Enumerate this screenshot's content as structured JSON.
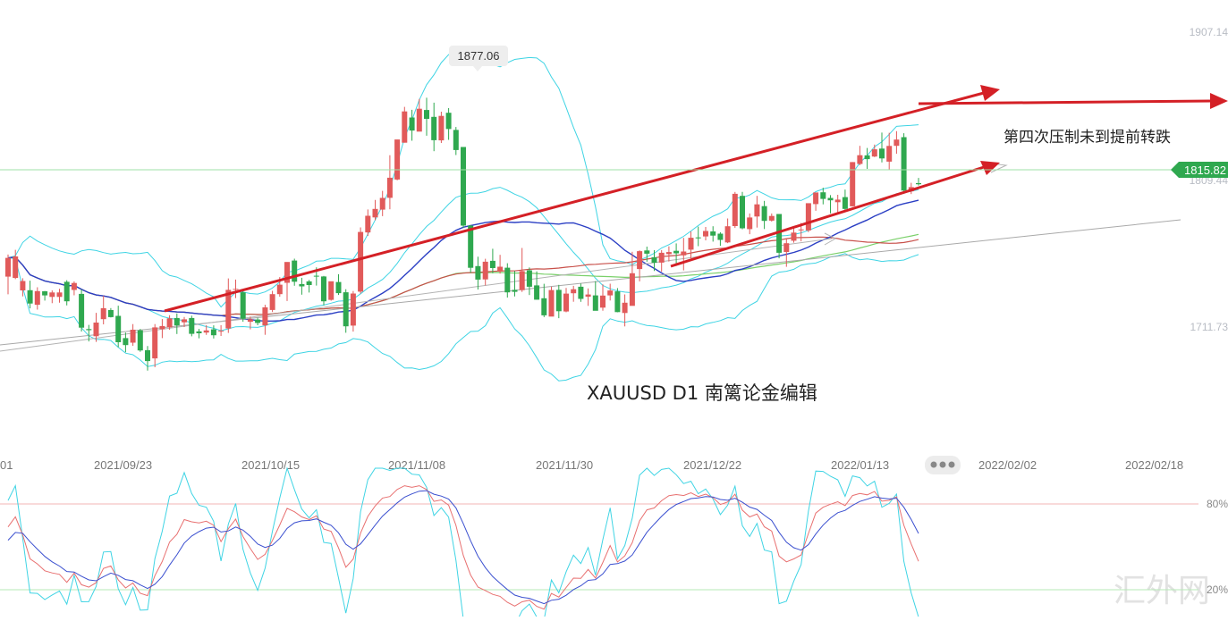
{
  "chart_data": {
    "type": "candlestick",
    "symbol_title": "XAUUSD   D1   南篱论金编辑",
    "annotation": "第四次压制未到提前转跌",
    "watermark": "汇外网",
    "price_axis": {
      "ticks": [
        1907.14,
        1711.73
      ],
      "current_price": "1815.82",
      "hidden_label": "1809.44"
    },
    "high_marker": {
      "value": "1877.06"
    },
    "date_axis": {
      "ticks": [
        "01",
        "2021/09/23",
        "2021/10/15",
        "2021/11/08",
        "2021/11/30",
        "2021/12/22",
        "2022/01/13",
        "2022/02/02",
        "2022/02/18"
      ]
    },
    "oscillator": {
      "levels": [
        "80%",
        "20%"
      ]
    },
    "colors": {
      "up": "#e15a5a",
      "down": "#2fa84f",
      "bands": "#3fd4e4",
      "ma_blue": "#2b3fc4",
      "ma_green": "#7ad06a",
      "ma_red": "#c8504a",
      "trend": "#d42026",
      "current_badge": "#2fa84f"
    },
    "candles": [
      [
        1754.69,
        1767.12,
        1742.96,
        1769.3
      ],
      [
        1753.81,
        1768.06,
        1752.99,
        1772.43
      ],
      [
        1745.56,
        1751.76,
        1741.61,
        1753.6
      ],
      [
        1745.66,
        1736.84,
        1733.66,
        1752.03
      ],
      [
        1736.06,
        1745.1,
        1732.83,
        1747.61
      ],
      [
        1744.95,
        1742.21,
        1738.79,
        1745.19
      ],
      [
        1741.25,
        1744.21,
        1737.12,
        1745.56
      ],
      [
        1741.26,
        1744.23,
        1737.44,
        1746.56
      ],
      [
        1751.26,
        1738.36,
        1735.61,
        1752.28
      ],
      [
        1745.89,
        1750.49,
        1742.29,
        1751.52
      ],
      [
        1743.25,
        1720.86,
        1718.34,
        1746.24
      ],
      [
        1719.94,
        1719.24,
        1711.78,
        1722.7
      ],
      [
        1715.21,
        1724.26,
        1711.5,
        1730.69
      ],
      [
        1726.52,
        1733.81,
        1723.07,
        1741.99
      ],
      [
        1732.56,
        1727.88,
        1727.62,
        1733.87
      ],
      [
        1728.69,
        1711.26,
        1707.91,
        1735.42
      ],
      [
        1713.95,
        1709.31,
        1704.61,
        1717.62
      ],
      [
        1710.96,
        1719.53,
        1708.87,
        1723.25
      ],
      [
        1719.13,
        1705.84,
        1704.93,
        1720.03
      ],
      [
        1705.95,
        1698.74,
        1692.44,
        1708.75
      ],
      [
        1700.53,
        1721.08,
        1694.67,
        1723.23
      ],
      [
        1719.84,
        1721.94,
        1713.98,
        1726.56
      ],
      [
        1721.08,
        1727.05,
        1719.48,
        1729.09
      ],
      [
        1727.29,
        1722.36,
        1716.7,
        1730.3
      ],
      [
        1724.41,
        1726.38,
        1721.33,
        1727.92
      ],
      [
        1727.28,
        1716.81,
        1715.12,
        1728.8
      ],
      [
        1718.42,
        1717.18,
        1713.86,
        1720.06
      ],
      [
        1717.64,
        1719.05,
        1716.07,
        1722.55
      ],
      [
        1719.76,
        1715.84,
        1713.73,
        1722.4
      ],
      [
        1718.47,
        1718.8,
        1715.38,
        1722.53
      ],
      [
        1720.32,
        1745.9,
        1717.37,
        1753.47
      ],
      [
        1746.34,
        1746.59,
        1740.49,
        1752.75
      ],
      [
        1744.25,
        1726.78,
        1724.8,
        1745.5
      ],
      [
        1724.8,
        1726.47,
        1719.77,
        1728.23
      ],
      [
        1726.28,
        1724.02,
        1722.48,
        1727.37
      ],
      [
        1722.45,
        1734.34,
        1716.17,
        1736.02
      ],
      [
        1732.61,
        1743.09,
        1731.22,
        1745.28
      ],
      [
        1743.06,
        1749.32,
        1741.36,
        1754.4
      ],
      [
        1750.6,
        1764.38,
        1738.55,
        1764.28
      ],
      [
        1765.34,
        1751.32,
        1748.65,
        1766.57
      ],
      [
        1749.79,
        1748.27,
        1742.75,
        1753.93
      ],
      [
        1751.51,
        1749.08,
        1744.14,
        1752.46
      ],
      [
        1755.29,
        1754.96,
        1748.73,
        1760.85
      ],
      [
        1754.79,
        1738.36,
        1735.67,
        1755.19
      ],
      [
        1739.25,
        1751.57,
        1738.76,
        1751.49
      ],
      [
        1751.11,
        1743.73,
        1742.52,
        1756.25
      ],
      [
        1744.33,
        1721.78,
        1717.53,
        1746.35
      ],
      [
        1722.24,
        1743.5,
        1718.3,
        1745.14
      ],
      [
        1744.75,
        1784.26,
        1743.49,
        1787.27
      ],
      [
        1783.96,
        1794.99,
        1781.65,
        1799.15
      ],
      [
        1793.87,
        1799.51,
        1792.04,
        1805.43
      ],
      [
        1799.04,
        1806.81,
        1794.75,
        1811.48
      ],
      [
        1806.85,
        1820.18,
        1799.28,
        1835.06
      ],
      [
        1818.97,
        1845.5,
        1818.46,
        1845.39
      ],
      [
        1843.35,
        1864.08,
        1843.44,
        1867.13
      ],
      [
        1860.06,
        1851.4,
        1844.68,
        1865.17
      ],
      [
        1850.67,
        1865.84,
        1851.41,
        1872.39
      ],
      [
        1865.04,
        1859.21,
        1847.97,
        1873.13
      ],
      [
        1860.46,
        1845.04,
        1837.76,
        1869.86
      ],
      [
        1844.87,
        1861.11,
        1843.2,
        1863.9
      ],
      [
        1863.19,
        1852.45,
        1845.26,
        1866.27
      ],
      [
        1851.84,
        1838.51,
        1835.23,
        1853.78
      ],
      [
        1840.53,
        1788.46,
        1786.78,
        1840.5
      ],
      [
        1788.46,
        1760.52,
        1757.33,
        1788.89
      ],
      [
        1761.68,
        1752.72,
        1746.15,
        1767.85
      ],
      [
        1752.84,
        1764.54,
        1748.9,
        1766.48
      ],
      [
        1765.14,
        1760.35,
        1756.9,
        1773.14
      ],
      [
        1758.03,
        1761.22,
        1756.7,
        1769.12
      ],
      [
        1760.58,
        1744.26,
        1740.81,
        1763.54
      ],
      [
        1745.89,
        1744.61,
        1741.61,
        1758.44
      ],
      [
        1745.73,
        1758.33,
        1744.56,
        1773.67
      ],
      [
        1758.87,
        1747.98,
        1742.49,
        1760.74
      ],
      [
        1748.89,
        1739.43,
        1739.48,
        1758.17
      ],
      [
        1740.34,
        1729.05,
        1727.87,
        1749.96
      ],
      [
        1728.21,
        1745.8,
        1728.77,
        1747.96
      ],
      [
        1745.94,
        1731.78,
        1727.17,
        1749.25
      ],
      [
        1731.64,
        1743.45,
        1731.08,
        1747.21
      ],
      [
        1743.71,
        1746.35,
        1738.06,
        1748.59
      ],
      [
        1748.01,
        1739.95,
        1738.01,
        1750.09
      ],
      [
        1741.46,
        1742.86,
        1735.34,
        1746.86
      ],
      [
        1742.27,
        1732.11,
        1732.58,
        1751.74
      ],
      [
        1734.13,
        1742.13,
        1732.09,
        1749.61
      ],
      [
        1742.24,
        1745.5,
        1738.89,
        1749.99
      ],
      [
        1744.91,
        1731.17,
        1731.04,
        1747.13
      ],
      [
        1730.6,
        1737.42,
        1721.69,
        1742.89
      ],
      [
        1735.32,
        1756.94,
        1735.5,
        1771.11
      ],
      [
        1759.65,
        1771.51,
        1751.54,
        1772.06
      ],
      [
        1772.01,
        1769.9,
        1764.57,
        1774.53
      ],
      [
        1767.53,
        1763.87,
        1758.48,
        1772.19
      ],
      [
        1763.98,
        1770.48,
        1757.9,
        1772.27
      ],
      [
        1769.58,
        1770.96,
        1764.66,
        1774.72
      ],
      [
        1771.76,
        1770.1,
        1761.78,
        1776.68
      ],
      [
        1768.79,
        1771.32,
        1758.82,
        1780.38
      ],
      [
        1772.55,
        1780.41,
        1766.79,
        1784.54
      ],
      [
        1780.68,
        1780.57,
        1774.88,
        1787.84
      ],
      [
        1781.35,
        1784.93,
        1778.67,
        1787.57
      ],
      [
        1784.64,
        1781.84,
        1777.87,
        1788.05
      ],
      [
        1783.15,
        1779.01,
        1775.08,
        1784.08
      ],
      [
        1777.35,
        1788.06,
        1776.87,
        1793.22
      ],
      [
        1788.18,
        1809.52,
        1786.92,
        1810.79
      ],
      [
        1808.16,
        1786.69,
        1786.03,
        1810.85
      ],
      [
        1786.16,
        1793.84,
        1782.76,
        1796.52
      ],
      [
        1794.49,
        1802.52,
        1787.15,
        1808.18
      ],
      [
        1801.34,
        1791.59,
        1786.22,
        1804.84
      ],
      [
        1791.77,
        1794.86,
        1791.13,
        1796.48
      ],
      [
        1796.14,
        1770.47,
        1766.81,
        1795.86
      ],
      [
        1771.03,
        1776.82,
        1761.18,
        1779.87
      ],
      [
        1778.49,
        1783.87,
        1777.14,
        1787.78
      ],
      [
        1785.46,
        1785.89,
        1778.03,
        1790.26
      ],
      [
        1785.28,
        1803.31,
        1784.12,
        1803.08
      ],
      [
        1802.74,
        1810.44,
        1798.28,
        1809.44
      ],
      [
        1810.54,
        1806.16,
        1802.54,
        1813.55
      ],
      [
        1806.82,
        1805.22,
        1796.6,
        1808.62
      ],
      [
        1803.98,
        1805.7,
        1795.94,
        1808.89
      ],
      [
        1807.33,
        1799.53,
        1798.35,
        1812.31
      ],
      [
        1801.23,
        1830.54,
        1801.04,
        1830.55
      ],
      [
        1829.26,
        1835.08,
        1828.5,
        1841.28
      ],
      [
        1834.97,
        1832.47,
        1826.01,
        1839.89
      ],
      [
        1834.22,
        1839.02,
        1833.83,
        1842.13
      ],
      [
        1839.46,
        1832.97,
        1830.38,
        1850.08
      ],
      [
        1830.84,
        1841.24,
        1825.56,
        1849.93
      ],
      [
        1841.31,
        1845.44,
        1836.04,
        1851.02
      ],
      [
        1847.07,
        1811.68,
        1809.66,
        1849.65
      ],
      [
        1811.2,
        1813.98,
        1809.32,
        1816.78
      ],
      [
        1816.54,
        1815.82,
        1815.01,
        1820.08
      ]
    ]
  }
}
